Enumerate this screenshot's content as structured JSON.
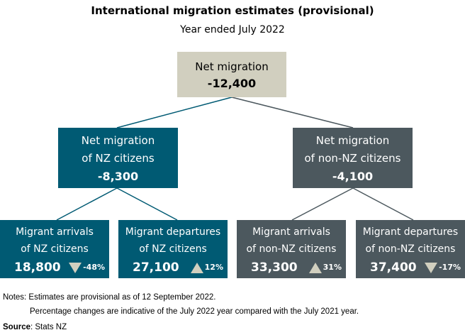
{
  "title": "International migration estimates (provisional)",
  "subtitle": "Year ended July 2022",
  "colors": {
    "nz": "#005a73",
    "non_nz": "#4c585e",
    "net": "#d1cfbf",
    "connector_nz": "#005a73",
    "connector_non_nz": "#4c585e"
  },
  "net": {
    "label": "Net migration",
    "value": "-12,400"
  },
  "nz": {
    "line1": "Net migration",
    "line2": "of NZ citizens",
    "value": "-8,300"
  },
  "non_nz": {
    "line1": "Net migration",
    "line2": "of non-NZ citizens",
    "value": "-4,100"
  },
  "leaves": [
    {
      "line1": "Migrant arrivals",
      "line2": "of NZ citizens",
      "value": "18,800",
      "change": "-48%",
      "direction": "down"
    },
    {
      "line1": "Migrant departures",
      "line2": "of NZ citizens",
      "value": "27,100",
      "change": "12%",
      "direction": "up"
    },
    {
      "line1": "Migrant arrivals",
      "line2": "of non-NZ citizens",
      "value": "33,300",
      "change": "31%",
      "direction": "up"
    },
    {
      "line1": "Migrant departures",
      "line2": "of non-NZ citizens",
      "value": "37,400",
      "change": "-17%",
      "direction": "down"
    }
  ],
  "notes": {
    "line1": "Notes: Estimates are provisional as of 12 September 2022.",
    "line2": "Percentage changes are indicative of the July 2022 year compared with the July 2021 year.",
    "source_label": "Source",
    "source": ": Stats NZ"
  }
}
